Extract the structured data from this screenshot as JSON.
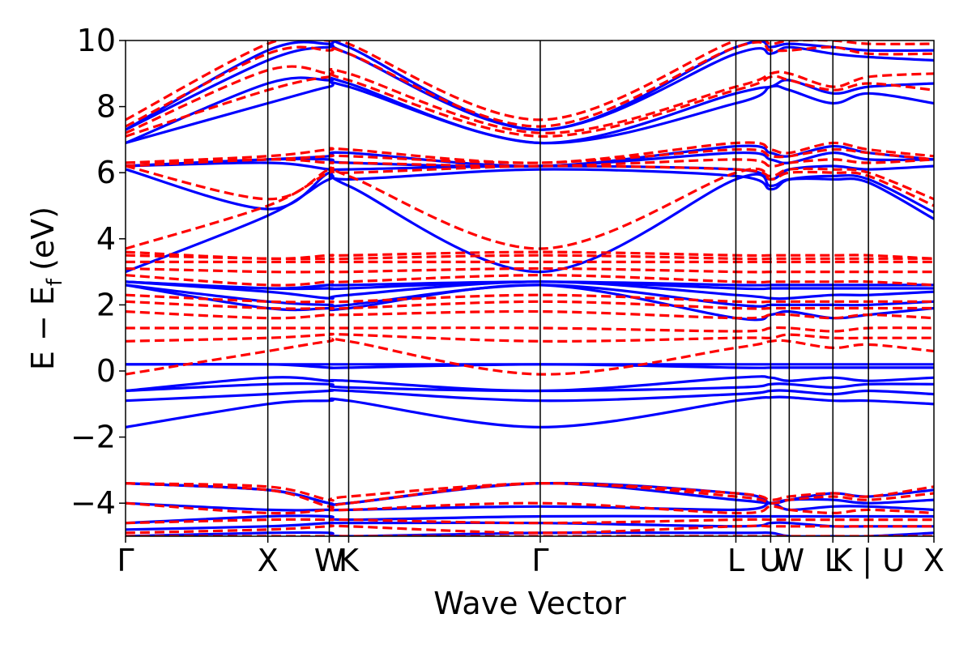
{
  "chart_data": {
    "type": "line",
    "title": "",
    "xlabel": "Wave Vector",
    "ylabel": "E − E",
    "ylabel_sub": "f",
    "ylabel_unit": "(eV)",
    "ylim": [
      -5,
      10
    ],
    "xlim": [
      0,
      1
    ],
    "yticks": [
      -4,
      -2,
      0,
      2,
      4,
      6,
      8,
      10
    ],
    "ytick_labels": [
      "−4",
      "−2",
      "0",
      "2",
      "4",
      "6",
      "8",
      "10"
    ],
    "kpath": [
      {
        "label": "Γ",
        "x": 0.0
      },
      {
        "label": "X",
        "x": 0.176
      },
      {
        "label": "W",
        "x": 0.252
      },
      {
        "label": "K",
        "x": 0.276
      },
      {
        "label": "Γ",
        "x": 0.513
      },
      {
        "label": "L",
        "x": 0.755
      },
      {
        "label": "U",
        "x": 0.798
      },
      {
        "label": "W",
        "x": 0.821
      },
      {
        "label": "L",
        "x": 0.875
      },
      {
        "label": "K | U",
        "x": 0.919
      },
      {
        "label": "X",
        "x": 1.0
      }
    ],
    "grid": false,
    "series": [
      {
        "style": "solid",
        "color": "#0000ff",
        "bands": [
          [
            -5.0,
            -4.9,
            -4.9,
            -5.0,
            -4.9,
            -4.9,
            -4.9,
            -5.0,
            -5.0,
            -5.0,
            -4.9
          ],
          [
            -4.8,
            -4.7,
            -4.6,
            -4.6,
            -4.6,
            -4.7,
            -4.6,
            -4.6,
            -4.7,
            -4.7,
            -4.7
          ],
          [
            -4.6,
            -4.4,
            -4.4,
            -4.5,
            -4.4,
            -4.4,
            -4.4,
            -4.4,
            -4.4,
            -4.4,
            -4.4
          ],
          [
            -4.0,
            -4.2,
            -4.2,
            -4.2,
            -4.1,
            -4.2,
            -4.0,
            -4.2,
            -4.1,
            -4.1,
            -4.2
          ],
          [
            -3.4,
            -3.6,
            -4.0,
            -4.0,
            -3.4,
            -3.9,
            -4.0,
            -3.9,
            -3.9,
            -4.0,
            -3.9
          ],
          [
            -3.4,
            -3.6,
            -4.0,
            -4.0,
            -3.4,
            -3.7,
            -4.0,
            -3.9,
            -3.7,
            -3.8,
            -3.6
          ],
          [
            -1.7,
            -1.0,
            -0.9,
            -0.9,
            -1.7,
            -0.9,
            -0.8,
            -0.8,
            -0.9,
            -0.9,
            -1.0
          ],
          [
            -0.9,
            -0.7,
            -0.6,
            -0.6,
            -0.9,
            -0.7,
            -0.6,
            -0.6,
            -0.7,
            -0.6,
            -0.7
          ],
          [
            -0.6,
            -0.4,
            -0.4,
            -0.5,
            -0.6,
            -0.5,
            -0.4,
            -0.4,
            -0.5,
            -0.4,
            -0.4
          ],
          [
            -0.6,
            -0.2,
            -0.3,
            -0.3,
            -0.6,
            -0.2,
            -0.2,
            -0.3,
            -0.2,
            -0.3,
            -0.2
          ],
          [
            0.2,
            0.2,
            0.1,
            0.1,
            0.2,
            0.1,
            0.1,
            0.1,
            0.1,
            0.1,
            0.1
          ],
          [
            0.2,
            0.2,
            0.2,
            0.2,
            0.2,
            0.2,
            0.2,
            0.2,
            0.2,
            0.2,
            0.2
          ],
          [
            2.6,
            1.9,
            1.9,
            1.9,
            2.6,
            1.6,
            1.7,
            1.8,
            1.6,
            1.7,
            1.9
          ],
          [
            2.6,
            2.1,
            2.0,
            2.0,
            2.6,
            2.0,
            2.0,
            2.0,
            2.0,
            2.0,
            2.1
          ],
          [
            2.7,
            2.4,
            2.2,
            2.3,
            2.7,
            2.3,
            2.2,
            2.2,
            2.3,
            2.3,
            2.4
          ],
          [
            2.7,
            2.5,
            2.5,
            2.5,
            2.7,
            2.5,
            2.5,
            2.5,
            2.5,
            2.5,
            2.5
          ],
          [
            2.7,
            2.5,
            2.6,
            2.6,
            2.7,
            2.6,
            2.6,
            2.6,
            2.6,
            2.6,
            2.6
          ],
          [
            3.0,
            4.7,
            5.8,
            5.6,
            3.0,
            5.8,
            5.6,
            5.8,
            5.8,
            5.7,
            4.6
          ],
          [
            6.1,
            4.9,
            6.0,
            5.8,
            6.1,
            5.9,
            5.5,
            5.8,
            5.9,
            5.8,
            4.8
          ],
          [
            6.2,
            6.3,
            6.1,
            6.1,
            6.2,
            6.1,
            5.8,
            6.1,
            6.2,
            6.1,
            6.2
          ],
          [
            6.2,
            6.4,
            6.4,
            6.3,
            6.2,
            6.6,
            6.4,
            6.3,
            6.6,
            6.4,
            6.4
          ],
          [
            6.2,
            6.4,
            6.5,
            6.6,
            6.2,
            6.8,
            6.6,
            6.5,
            6.8,
            6.6,
            6.4
          ],
          [
            6.9,
            8.1,
            8.6,
            8.6,
            6.9,
            8.1,
            8.6,
            8.5,
            8.1,
            8.4,
            8.1
          ],
          [
            6.9,
            8.7,
            8.8,
            8.7,
            6.9,
            8.4,
            8.6,
            8.8,
            8.4,
            8.6,
            8.7
          ],
          [
            7.3,
            9.4,
            9.8,
            9.6,
            7.3,
            9.6,
            9.6,
            9.8,
            9.6,
            9.5,
            9.4
          ],
          [
            7.3,
            9.7,
            9.9,
            9.8,
            7.3,
            9.8,
            9.8,
            9.9,
            9.8,
            9.7,
            9.7
          ]
        ]
      },
      {
        "style": "dashed",
        "color": "#ff0000",
        "bands": [
          [
            -5.0,
            -5.0,
            -5.0,
            -5.0,
            -5.0,
            -5.0,
            -5.0,
            -5.0,
            -5.0,
            -5.0,
            -5.0
          ],
          [
            -4.9,
            -4.8,
            -4.7,
            -4.7,
            -4.9,
            -4.7,
            -4.7,
            -4.7,
            -4.7,
            -4.7,
            -4.7
          ],
          [
            -4.6,
            -4.5,
            -4.5,
            -4.5,
            -4.6,
            -4.5,
            -4.5,
            -4.5,
            -4.5,
            -4.5,
            -4.5
          ],
          [
            -4.0,
            -4.3,
            -4.2,
            -4.2,
            -4.0,
            -4.3,
            -4.1,
            -4.2,
            -4.3,
            -4.2,
            -4.3
          ],
          [
            -3.4,
            -3.6,
            -4.1,
            -4.0,
            -3.4,
            -3.8,
            -4.0,
            -3.9,
            -3.8,
            -3.9,
            -3.7
          ],
          [
            -3.4,
            -3.5,
            -3.9,
            -3.8,
            -3.4,
            -3.7,
            -3.9,
            -3.8,
            -3.7,
            -3.8,
            -3.5
          ],
          [
            -0.1,
            0.6,
            0.9,
            0.9,
            -0.1,
            0.7,
            0.9,
            0.9,
            0.7,
            0.8,
            0.6
          ],
          [
            0.9,
            1.0,
            1.1,
            1.1,
            0.9,
            1.0,
            1.0,
            1.1,
            1.0,
            1.0,
            1.0
          ],
          [
            1.3,
            1.3,
            1.3,
            1.3,
            1.3,
            1.2,
            1.3,
            1.3,
            1.2,
            1.3,
            1.3
          ],
          [
            1.8,
            1.6,
            1.7,
            1.7,
            1.8,
            1.6,
            1.7,
            1.7,
            1.6,
            1.7,
            1.6
          ],
          [
            2.1,
            1.9,
            1.9,
            1.9,
            2.1,
            1.9,
            1.9,
            1.9,
            1.9,
            1.9,
            1.9
          ],
          [
            2.3,
            2.1,
            2.1,
            2.1,
            2.3,
            2.1,
            2.1,
            2.1,
            2.1,
            2.1,
            2.1
          ],
          [
            2.9,
            2.6,
            2.7,
            2.7,
            2.9,
            2.7,
            2.7,
            2.7,
            2.7,
            2.7,
            2.6
          ],
          [
            3.1,
            3.0,
            3.0,
            3.0,
            3.1,
            3.0,
            3.0,
            3.0,
            3.0,
            3.0,
            3.0
          ],
          [
            3.3,
            3.3,
            3.3,
            3.3,
            3.3,
            3.3,
            3.3,
            3.3,
            3.3,
            3.3,
            3.3
          ],
          [
            3.5,
            3.4,
            3.4,
            3.4,
            3.5,
            3.4,
            3.4,
            3.4,
            3.4,
            3.4,
            3.4
          ],
          [
            3.6,
            3.4,
            3.5,
            3.5,
            3.6,
            3.5,
            3.5,
            3.5,
            3.5,
            3.5,
            3.4
          ],
          [
            3.7,
            5.0,
            6.0,
            5.9,
            3.7,
            6.0,
            5.8,
            6.0,
            6.0,
            5.9,
            5.0
          ],
          [
            6.2,
            5.2,
            6.1,
            6.0,
            6.2,
            6.1,
            5.9,
            6.1,
            6.1,
            6.0,
            5.2
          ],
          [
            6.2,
            6.4,
            6.3,
            6.3,
            6.2,
            6.4,
            6.2,
            6.3,
            6.4,
            6.3,
            6.4
          ],
          [
            6.3,
            6.4,
            6.5,
            6.5,
            6.3,
            6.7,
            6.5,
            6.5,
            6.7,
            6.6,
            6.4
          ],
          [
            6.3,
            6.5,
            6.7,
            6.7,
            6.3,
            6.9,
            6.7,
            6.6,
            6.9,
            6.7,
            6.5
          ],
          [
            7.1,
            8.5,
            8.9,
            8.8,
            7.1,
            8.5,
            8.9,
            8.8,
            8.5,
            8.7,
            8.5
          ],
          [
            7.2,
            9.1,
            9.0,
            9.0,
            7.2,
            8.6,
            9.0,
            9.0,
            8.6,
            8.9,
            9.0
          ],
          [
            7.4,
            9.6,
            9.7,
            9.6,
            7.4,
            9.8,
            9.7,
            9.7,
            9.8,
            9.6,
            9.6
          ],
          [
            7.6,
            9.9,
            10.0,
            9.9,
            7.6,
            10.0,
            9.9,
            10.0,
            10.0,
            9.9,
            9.9
          ]
        ]
      }
    ]
  }
}
